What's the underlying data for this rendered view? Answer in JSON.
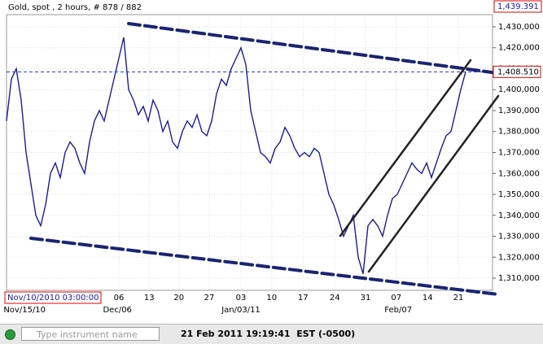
{
  "chart_data": {
    "type": "line",
    "title": "Gold, spot , 2 hours, # 878 / 882",
    "cursor_label": "Nov/10/2010 03:00:00",
    "color": "#1c1c9a",
    "values": [
      1385000,
      1405000,
      1410000,
      1395000,
      1370000,
      1355000,
      1340000,
      1335000,
      1345000,
      1360000,
      1365000,
      1358000,
      1370000,
      1375000,
      1372000,
      1365000,
      1360000,
      1375000,
      1385000,
      1390000,
      1385000,
      1395000,
      1405000,
      1415000,
      1425000,
      1400000,
      1395000,
      1388000,
      1392000,
      1385000,
      1395000,
      1390000,
      1380000,
      1385000,
      1375000,
      1372000,
      1380000,
      1385000,
      1382000,
      1388000,
      1380000,
      1378000,
      1385000,
      1398000,
      1405000,
      1402000,
      1410000,
      1415000,
      1420000,
      1412000,
      1390000,
      1380000,
      1370000,
      1368000,
      1365000,
      1372000,
      1375000,
      1382000,
      1378000,
      1372000,
      1368000,
      1370000,
      1368000,
      1372000,
      1370000,
      1360000,
      1350000,
      1345000,
      1338000,
      1330000,
      1335000,
      1340000,
      1320000,
      1312000,
      1335000,
      1338000,
      1335000,
      1330000,
      1340000,
      1348000,
      1350000,
      1355000,
      1360000,
      1365000,
      1362000,
      1360000,
      1365000,
      1358000,
      1365000,
      1372000,
      1378000,
      1380000,
      1390000,
      1400000,
      1408510
    ],
    "xlim": [
      0,
      99.5
    ],
    "xticks": [
      {
        "value": 23,
        "label": "06"
      },
      {
        "value": 29.2,
        "label": "13"
      },
      {
        "value": 35.3,
        "label": "20"
      },
      {
        "value": 41.5,
        "label": "27"
      },
      {
        "value": 48,
        "label": "03"
      },
      {
        "value": 54.3,
        "label": "10"
      },
      {
        "value": 60.7,
        "label": "17"
      },
      {
        "value": 67.2,
        "label": "24"
      },
      {
        "value": 73.5,
        "label": "31"
      },
      {
        "value": 79.8,
        "label": "07"
      },
      {
        "value": 86.2,
        "label": "14"
      },
      {
        "value": 92.5,
        "label": "21"
      }
    ],
    "xticks_month": [
      {
        "value": 3.7,
        "label": "Nov/15/10"
      },
      {
        "value": 22.7,
        "label": "Dec/06"
      },
      {
        "value": 48,
        "label": "Jan/03/11"
      },
      {
        "value": 80.2,
        "label": "Feb/07"
      }
    ],
    "ylim": [
      1304175,
      1435825
    ],
    "yticks": [
      {
        "value": 1310000,
        "label": "1,310,000"
      },
      {
        "value": 1320000,
        "label": "1,320,000"
      },
      {
        "value": 1330000,
        "label": "1,330,000"
      },
      {
        "value": 1340000,
        "label": "1,340,000"
      },
      {
        "value": 1350000,
        "label": "1,350,000"
      },
      {
        "value": 1360000,
        "label": "1,360,000"
      },
      {
        "value": 1370000,
        "label": "1,370,000"
      },
      {
        "value": 1380000,
        "label": "1,380,000"
      },
      {
        "value": 1390000,
        "label": "1,390,000"
      },
      {
        "value": 1400000,
        "label": "1,400,000"
      },
      {
        "value": 1410000,
        "label": "1,410,000"
      },
      {
        "value": 1420000,
        "label": "1,420,000"
      },
      {
        "value": 1430000,
        "label": "1,430,000"
      }
    ],
    "high_mark": {
      "value": 1439391,
      "label": "1,439.391"
    },
    "last_price": {
      "value": 1408510,
      "label": "1,408.510"
    },
    "grid": true
  },
  "toolbar": {
    "search_placeholder": "Type instrument name",
    "timestamp": "21 Feb 2011 19:19:41  EST (-0500)"
  }
}
